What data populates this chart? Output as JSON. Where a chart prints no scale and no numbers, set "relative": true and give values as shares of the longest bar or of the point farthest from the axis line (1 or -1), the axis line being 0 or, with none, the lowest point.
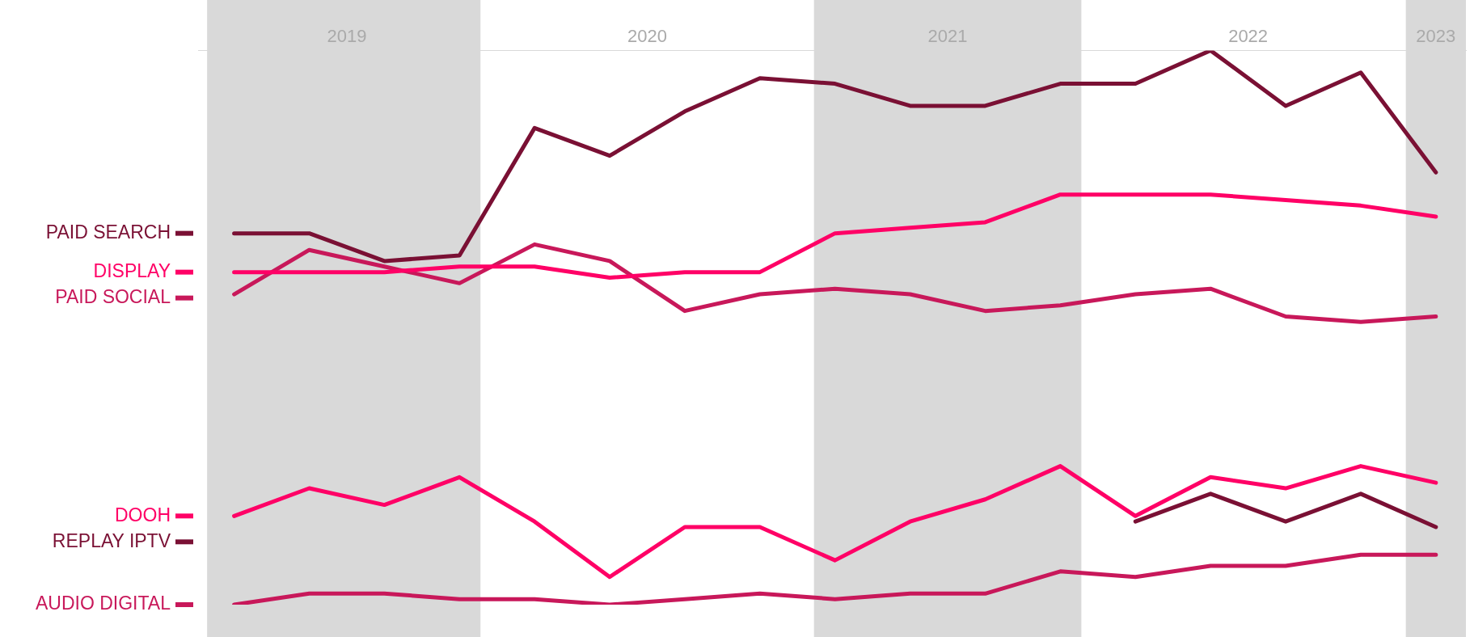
{
  "chart_data": {
    "type": "line",
    "relative": true,
    "grid": false,
    "legend": "left",
    "marker": "none",
    "line_style": "solid",
    "x": [
      2019,
      2019.25,
      2019.5,
      2019.75,
      2020,
      2020.25,
      2020.5,
      2020.75,
      2021,
      2021.25,
      2021.5,
      2021.75,
      2022,
      2022.25,
      2022.5,
      2022.75,
      2023
    ],
    "xlim": [
      2018.88,
      2023.1
    ],
    "xticks": [
      {
        "value": 2019.375,
        "label": "2019"
      },
      {
        "value": 2020.375,
        "label": "2020"
      },
      {
        "value": 2021.375,
        "label": "2021"
      },
      {
        "value": 2022.375,
        "label": "2022"
      },
      {
        "value": 2023,
        "label": "2023"
      }
    ],
    "bands": [
      {
        "axis": "x",
        "from": 2018.91,
        "to": 2019.82,
        "color": "#d9d9d9"
      },
      {
        "axis": "x",
        "from": 2020.93,
        "to": 2021.82,
        "color": "#d9d9d9"
      },
      {
        "axis": "x",
        "from": 2022.9,
        "to": 2023.1,
        "color": "#d9d9d9"
      }
    ],
    "series": [
      {
        "name": "PAID SEARCH",
        "color": "#7a1034",
        "values": [
          0.67,
          0.67,
          0.62,
          0.63,
          0.86,
          0.81,
          0.89,
          0.95,
          0.94,
          0.9,
          0.9,
          0.94,
          0.94,
          1.0,
          0.9,
          0.96,
          0.78
        ]
      },
      {
        "name": "DISPLAY",
        "color": "#ff0066",
        "values": [
          0.6,
          0.6,
          0.6,
          0.61,
          0.61,
          0.59,
          0.6,
          0.6,
          0.67,
          0.68,
          0.69,
          0.74,
          0.74,
          0.74,
          0.73,
          0.72,
          0.7
        ]
      },
      {
        "name": "PAID SOCIAL",
        "color": "#c8185a",
        "values": [
          0.56,
          0.64,
          0.61,
          0.58,
          0.65,
          0.62,
          0.53,
          0.56,
          0.57,
          0.56,
          0.53,
          0.54,
          0.56,
          0.57,
          0.52,
          0.51,
          0.52
        ]
      },
      {
        "name": "DOOH",
        "color": "#ff0066",
        "values": [
          0.16,
          0.21,
          0.18,
          0.23,
          0.15,
          0.05,
          0.14,
          0.14,
          0.08,
          0.15,
          0.19,
          0.25,
          0.16,
          0.23,
          0.21,
          0.25,
          0.22
        ]
      },
      {
        "name": "REPLAY IPTV",
        "color": "#7a1034",
        "values": [
          null,
          null,
          null,
          null,
          null,
          null,
          null,
          null,
          null,
          null,
          null,
          null,
          0.15,
          0.2,
          0.15,
          0.2,
          0.14
        ]
      },
      {
        "name": "AUDIO DIGITAL",
        "color": "#c8185a",
        "values": [
          0.0,
          0.02,
          0.02,
          0.01,
          0.01,
          0.0,
          0.01,
          0.02,
          0.01,
          0.02,
          0.02,
          0.06,
          0.05,
          0.07,
          0.07,
          0.09,
          0.09
        ]
      }
    ]
  }
}
